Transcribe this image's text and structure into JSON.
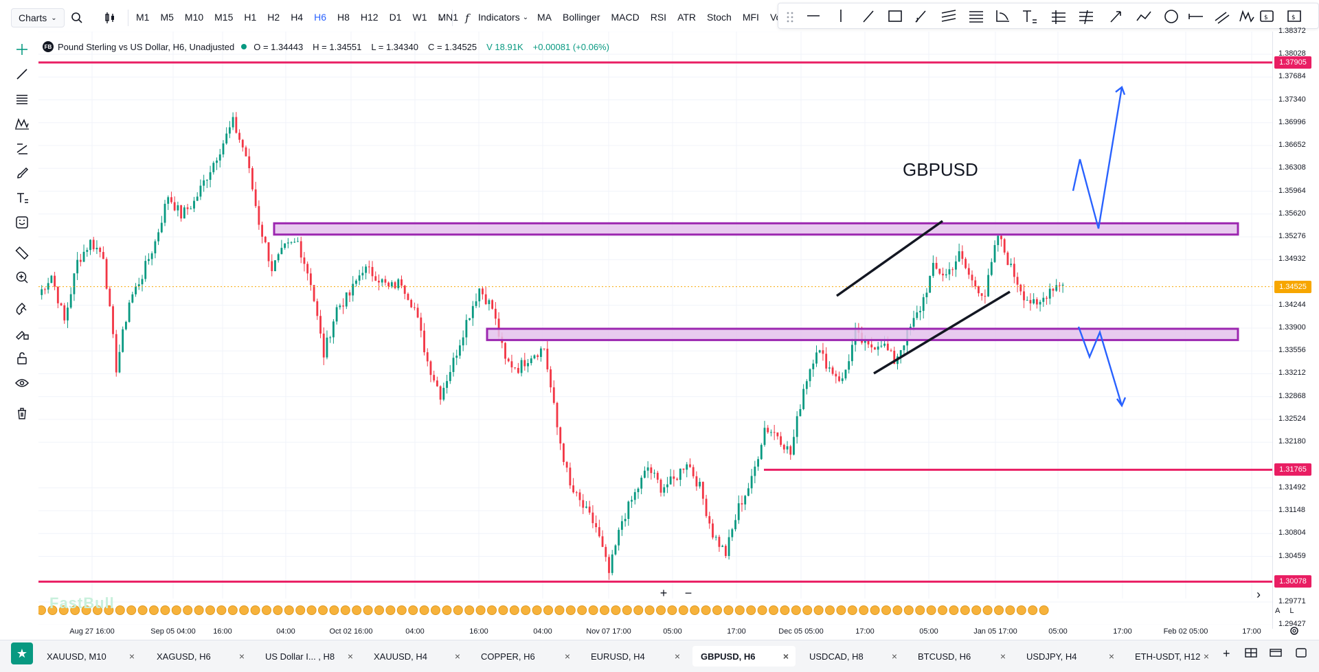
{
  "topbar": {
    "charts_label": "Charts",
    "timeframes": [
      "M1",
      "M5",
      "M10",
      "M15",
      "H1",
      "H2",
      "H4",
      "H6",
      "H8",
      "H12",
      "D1",
      "W1",
      "MN1"
    ],
    "active_timeframe": "H6",
    "indicators_label": "Indicators",
    "indicator_shortcuts": [
      "MA",
      "Bollinger",
      "MACD",
      "RSI",
      "ATR",
      "Stoch",
      "MFI",
      "Volume"
    ]
  },
  "legend": {
    "badge": "FB",
    "title": "Pound Sterling vs US Dollar, H6, Unadjusted",
    "open": "O = 1.34443",
    "high": "H = 1.34551",
    "low": "L = 1.34340",
    "close": "C = 1.34525",
    "volume": "V 18.91K",
    "change": "+0.00081 (+0.06%)"
  },
  "chart_label": "GBPUSD",
  "watermark": "FastBull",
  "price_axis": {
    "ticks": [
      "1.38372",
      "1.38028",
      "1.37684",
      "1.37340",
      "1.36996",
      "1.36652",
      "1.36308",
      "1.35964",
      "1.35620",
      "1.35276",
      "1.34932",
      "1.34244",
      "1.33900",
      "1.33556",
      "1.33212",
      "1.32868",
      "1.32524",
      "1.32180",
      "1.31492",
      "1.31148",
      "1.30804",
      "1.30459",
      "1.29771",
      "1.29427"
    ],
    "tags": [
      {
        "label": "1.37905",
        "color": "#e91e63"
      },
      {
        "label": "1.34525",
        "color": "#f7a600"
      },
      {
        "label": "1.31765",
        "color": "#e91e63"
      },
      {
        "label": "1.30078",
        "color": "#e91e63"
      }
    ]
  },
  "time_axis": {
    "ticks": [
      "Aug 27 16:00",
      "Sep 05 04:00",
      "16:00",
      "04:00",
      "Oct 02 16:00",
      "04:00",
      "16:00",
      "04:00",
      "Nov 07 17:00",
      "05:00",
      "17:00",
      "Dec 05 05:00",
      "17:00",
      "05:00",
      "Jan 05 17:00",
      "05:00",
      "17:00",
      "Feb 02 05:00",
      "17:00"
    ]
  },
  "chart_data": {
    "type": "candlestick",
    "symbol": "GBPUSD",
    "timeframe": "H6",
    "ylim": [
      1.2943,
      1.3837
    ],
    "close_path": [
      [
        0,
        1.344
      ],
      [
        4,
        1.347
      ],
      [
        8,
        1.34
      ],
      [
        12,
        1.349
      ],
      [
        16,
        1.352
      ],
      [
        20,
        1.35
      ],
      [
        24,
        1.333
      ],
      [
        28,
        1.343
      ],
      [
        32,
        1.347
      ],
      [
        36,
        1.352
      ],
      [
        40,
        1.359
      ],
      [
        44,
        1.356
      ],
      [
        48,
        1.358
      ],
      [
        52,
        1.362
      ],
      [
        56,
        1.366
      ],
      [
        60,
        1.37
      ],
      [
        64,
        1.365
      ],
      [
        68,
        1.355
      ],
      [
        72,
        1.348
      ],
      [
        76,
        1.351
      ],
      [
        80,
        1.352
      ],
      [
        84,
        1.346
      ],
      [
        88,
        1.335
      ],
      [
        92,
        1.342
      ],
      [
        96,
        1.344
      ],
      [
        100,
        1.348
      ],
      [
        104,
        1.347
      ],
      [
        108,
        1.345
      ],
      [
        112,
        1.346
      ],
      [
        116,
        1.342
      ],
      [
        120,
        1.334
      ],
      [
        124,
        1.329
      ],
      [
        128,
        1.334
      ],
      [
        132,
        1.34
      ],
      [
        136,
        1.345
      ],
      [
        140,
        1.342
      ],
      [
        144,
        1.334
      ],
      [
        148,
        1.333
      ],
      [
        152,
        1.335
      ],
      [
        156,
        1.336
      ],
      [
        160,
        1.324
      ],
      [
        164,
        1.315
      ],
      [
        168,
        1.312
      ],
      [
        172,
        1.309
      ],
      [
        176,
        1.302
      ],
      [
        180,
        1.31
      ],
      [
        184,
        1.314
      ],
      [
        188,
        1.318
      ],
      [
        192,
        1.315
      ],
      [
        196,
        1.316
      ],
      [
        200,
        1.319
      ],
      [
        204,
        1.315
      ],
      [
        208,
        1.308
      ],
      [
        212,
        1.305
      ],
      [
        216,
        1.312
      ],
      [
        220,
        1.316
      ],
      [
        224,
        1.324
      ],
      [
        228,
        1.323
      ],
      [
        232,
        1.32
      ],
      [
        236,
        1.33
      ],
      [
        240,
        1.336
      ],
      [
        244,
        1.333
      ],
      [
        248,
        1.331
      ],
      [
        252,
        1.338
      ],
      [
        256,
        1.336
      ],
      [
        260,
        1.337
      ],
      [
        264,
        1.334
      ],
      [
        268,
        1.338
      ],
      [
        272,
        1.342
      ],
      [
        276,
        1.348
      ],
      [
        280,
        1.347
      ],
      [
        284,
        1.35
      ],
      [
        288,
        1.346
      ],
      [
        292,
        1.344
      ],
      [
        296,
        1.353
      ],
      [
        300,
        1.348
      ],
      [
        304,
        1.344
      ],
      [
        308,
        1.342
      ],
      [
        312,
        1.345
      ],
      [
        316,
        1.346
      ]
    ]
  },
  "drawings": {
    "horizontal_lines": [
      1.37905,
      1.31765,
      1.30078
    ],
    "zones": [
      {
        "top": 1.3548,
        "bottom": 1.3531
      },
      {
        "top": 1.3389,
        "bottom": 1.3372
      }
    ]
  },
  "zoom": {
    "in": "+",
    "out": "−"
  },
  "scale_buttons": [
    "A",
    "L"
  ],
  "tabs": [
    {
      "label": "XAUUSD, M10"
    },
    {
      "label": "XAGUSD, H6"
    },
    {
      "label": "US Dollar I... , H8"
    },
    {
      "label": "XAUUSD, H4"
    },
    {
      "label": "COPPER, H6"
    },
    {
      "label": "EURUSD, H4"
    },
    {
      "label": "GBPUSD, H6",
      "active": true
    },
    {
      "label": "USDCAD, H8"
    },
    {
      "label": "BTCUSD, H6"
    },
    {
      "label": "USDJPY, H4"
    },
    {
      "label": "ETH-USDT, H12"
    }
  ],
  "colors": {
    "up": "#089981",
    "down": "#f23645",
    "level_line": "#e91e63",
    "zone_fill": "#e4c2ec",
    "zone_border": "#9c27b0",
    "arrow": "#2962ff"
  }
}
